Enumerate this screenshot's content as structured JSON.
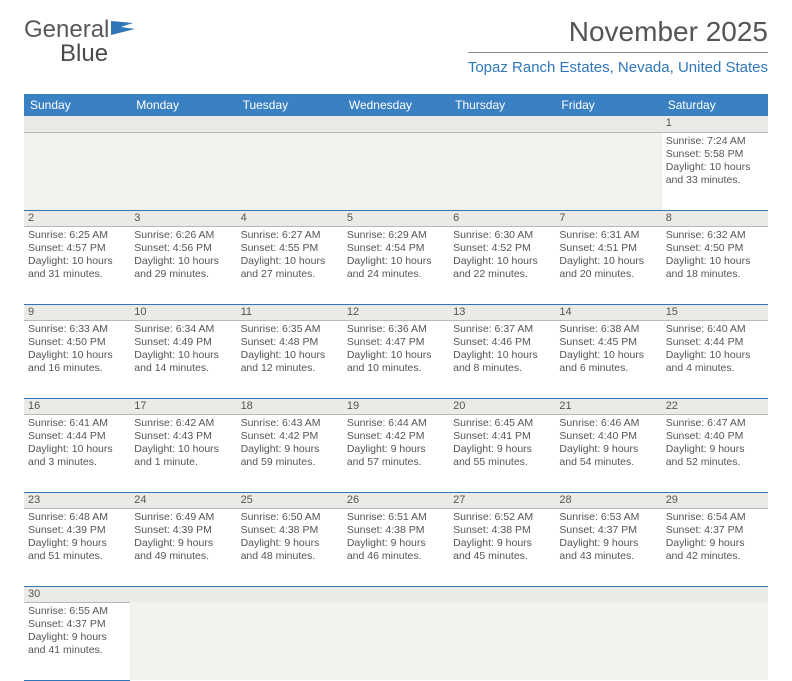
{
  "logo": {
    "text1": "General",
    "text2": "Blue"
  },
  "title": "November 2025",
  "location": "Topaz Ranch Estates, Nevada, United States",
  "colors": {
    "header_bg": "#3a81c4",
    "accent": "#2f77b8",
    "daynum_bg": "#eceae7",
    "text": "#555555",
    "rule": "#2f77b8"
  },
  "typography": {
    "title_fontsize": 28,
    "location_fontsize": 15,
    "body_fontsize": 10.5
  },
  "calendar": {
    "type": "table",
    "days_of_week": [
      "Sunday",
      "Monday",
      "Tuesday",
      "Wednesday",
      "Thursday",
      "Friday",
      "Saturday"
    ],
    "weeks": [
      [
        null,
        null,
        null,
        null,
        null,
        null,
        {
          "n": "1",
          "sr": "Sunrise: 7:24 AM",
          "ss": "Sunset: 5:58 PM",
          "dl": "Daylight: 10 hours and 33 minutes."
        }
      ],
      [
        {
          "n": "2",
          "sr": "Sunrise: 6:25 AM",
          "ss": "Sunset: 4:57 PM",
          "dl": "Daylight: 10 hours and 31 minutes."
        },
        {
          "n": "3",
          "sr": "Sunrise: 6:26 AM",
          "ss": "Sunset: 4:56 PM",
          "dl": "Daylight: 10 hours and 29 minutes."
        },
        {
          "n": "4",
          "sr": "Sunrise: 6:27 AM",
          "ss": "Sunset: 4:55 PM",
          "dl": "Daylight: 10 hours and 27 minutes."
        },
        {
          "n": "5",
          "sr": "Sunrise: 6:29 AM",
          "ss": "Sunset: 4:54 PM",
          "dl": "Daylight: 10 hours and 24 minutes."
        },
        {
          "n": "6",
          "sr": "Sunrise: 6:30 AM",
          "ss": "Sunset: 4:52 PM",
          "dl": "Daylight: 10 hours and 22 minutes."
        },
        {
          "n": "7",
          "sr": "Sunrise: 6:31 AM",
          "ss": "Sunset: 4:51 PM",
          "dl": "Daylight: 10 hours and 20 minutes."
        },
        {
          "n": "8",
          "sr": "Sunrise: 6:32 AM",
          "ss": "Sunset: 4:50 PM",
          "dl": "Daylight: 10 hours and 18 minutes."
        }
      ],
      [
        {
          "n": "9",
          "sr": "Sunrise: 6:33 AM",
          "ss": "Sunset: 4:50 PM",
          "dl": "Daylight: 10 hours and 16 minutes."
        },
        {
          "n": "10",
          "sr": "Sunrise: 6:34 AM",
          "ss": "Sunset: 4:49 PM",
          "dl": "Daylight: 10 hours and 14 minutes."
        },
        {
          "n": "11",
          "sr": "Sunrise: 6:35 AM",
          "ss": "Sunset: 4:48 PM",
          "dl": "Daylight: 10 hours and 12 minutes."
        },
        {
          "n": "12",
          "sr": "Sunrise: 6:36 AM",
          "ss": "Sunset: 4:47 PM",
          "dl": "Daylight: 10 hours and 10 minutes."
        },
        {
          "n": "13",
          "sr": "Sunrise: 6:37 AM",
          "ss": "Sunset: 4:46 PM",
          "dl": "Daylight: 10 hours and 8 minutes."
        },
        {
          "n": "14",
          "sr": "Sunrise: 6:38 AM",
          "ss": "Sunset: 4:45 PM",
          "dl": "Daylight: 10 hours and 6 minutes."
        },
        {
          "n": "15",
          "sr": "Sunrise: 6:40 AM",
          "ss": "Sunset: 4:44 PM",
          "dl": "Daylight: 10 hours and 4 minutes."
        }
      ],
      [
        {
          "n": "16",
          "sr": "Sunrise: 6:41 AM",
          "ss": "Sunset: 4:44 PM",
          "dl": "Daylight: 10 hours and 3 minutes."
        },
        {
          "n": "17",
          "sr": "Sunrise: 6:42 AM",
          "ss": "Sunset: 4:43 PM",
          "dl": "Daylight: 10 hours and 1 minute."
        },
        {
          "n": "18",
          "sr": "Sunrise: 6:43 AM",
          "ss": "Sunset: 4:42 PM",
          "dl": "Daylight: 9 hours and 59 minutes."
        },
        {
          "n": "19",
          "sr": "Sunrise: 6:44 AM",
          "ss": "Sunset: 4:42 PM",
          "dl": "Daylight: 9 hours and 57 minutes."
        },
        {
          "n": "20",
          "sr": "Sunrise: 6:45 AM",
          "ss": "Sunset: 4:41 PM",
          "dl": "Daylight: 9 hours and 55 minutes."
        },
        {
          "n": "21",
          "sr": "Sunrise: 6:46 AM",
          "ss": "Sunset: 4:40 PM",
          "dl": "Daylight: 9 hours and 54 minutes."
        },
        {
          "n": "22",
          "sr": "Sunrise: 6:47 AM",
          "ss": "Sunset: 4:40 PM",
          "dl": "Daylight: 9 hours and 52 minutes."
        }
      ],
      [
        {
          "n": "23",
          "sr": "Sunrise: 6:48 AM",
          "ss": "Sunset: 4:39 PM",
          "dl": "Daylight: 9 hours and 51 minutes."
        },
        {
          "n": "24",
          "sr": "Sunrise: 6:49 AM",
          "ss": "Sunset: 4:39 PM",
          "dl": "Daylight: 9 hours and 49 minutes."
        },
        {
          "n": "25",
          "sr": "Sunrise: 6:50 AM",
          "ss": "Sunset: 4:38 PM",
          "dl": "Daylight: 9 hours and 48 minutes."
        },
        {
          "n": "26",
          "sr": "Sunrise: 6:51 AM",
          "ss": "Sunset: 4:38 PM",
          "dl": "Daylight: 9 hours and 46 minutes."
        },
        {
          "n": "27",
          "sr": "Sunrise: 6:52 AM",
          "ss": "Sunset: 4:38 PM",
          "dl": "Daylight: 9 hours and 45 minutes."
        },
        {
          "n": "28",
          "sr": "Sunrise: 6:53 AM",
          "ss": "Sunset: 4:37 PM",
          "dl": "Daylight: 9 hours and 43 minutes."
        },
        {
          "n": "29",
          "sr": "Sunrise: 6:54 AM",
          "ss": "Sunset: 4:37 PM",
          "dl": "Daylight: 9 hours and 42 minutes."
        }
      ],
      [
        {
          "n": "30",
          "sr": "Sunrise: 6:55 AM",
          "ss": "Sunset: 4:37 PM",
          "dl": "Daylight: 9 hours and 41 minutes."
        },
        null,
        null,
        null,
        null,
        null,
        null
      ]
    ]
  }
}
